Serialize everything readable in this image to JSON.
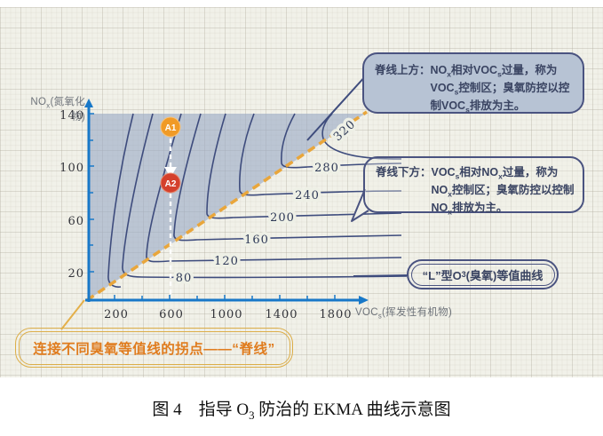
{
  "slide": {
    "chart": {
      "y_axis_label": "NOx(氮氧化物)",
      "x_axis_label": "VOCs(挥发性有机物)",
      "y_ticks": [
        "140",
        "100",
        "60",
        "20"
      ],
      "x_ticks": [
        "200",
        "600",
        "1000",
        "1400",
        "1800"
      ],
      "contour_labels": [
        "80",
        "120",
        "160",
        "200",
        "240",
        "280",
        "320"
      ],
      "points": [
        {
          "label": "A1",
          "color": "#f09a26"
        },
        {
          "label": "A2",
          "color": "#d4402c"
        }
      ]
    },
    "callouts": {
      "above_ridge": "脊线上方：NOx相对VOCs过量，称为VOCs控制区；臭氧防控以控制VOCs排放为主。",
      "below_ridge": "脊线下方：VOCs相对NOx过量，称为NOx控制区；臭氧防控以控制NOx排放为主。",
      "isopleth": "“L”型O3(臭氧)等值曲线",
      "ridge": "连接不同臭氧等值线的拐点——“脊线”"
    }
  },
  "caption": "图 4　指导 O3 防治的 EKMA 曲线示意图",
  "chart_data": {
    "type": "line",
    "subtype": "contour-schematic (EKMA isopleths)",
    "title": "",
    "xlabel": "VOCs(挥发性有机物)",
    "ylabel": "NOx(氮氧化物)",
    "xlim": [
      0,
      2000
    ],
    "ylim": [
      0,
      150
    ],
    "xticks": [
      200,
      600,
      1000,
      1400,
      1800
    ],
    "yticks": [
      20,
      60,
      100,
      140
    ],
    "grid": true,
    "contour_levels_o3": [
      40,
      80,
      120,
      160,
      200,
      240,
      280,
      320
    ],
    "labeled_levels": [
      80,
      120,
      160,
      200,
      240,
      280,
      320
    ],
    "ridge_line": {
      "style": "orange dashed",
      "from_xy": [
        0,
        0
      ],
      "to_xy": [
        2000,
        140
      ],
      "meaning": "连接不同臭氧等值线的拐点——“脊线”"
    },
    "annotations": [
      {
        "name": "A1",
        "x": 600,
        "y": 140,
        "color": "#f09a26"
      },
      {
        "name": "A2",
        "x": 600,
        "y": 100,
        "color": "#d4402c"
      }
    ],
    "shaded_region": "above ridge line (VOCs控制区), blue-gray fill",
    "colors": {
      "axis": "#1878c8",
      "contour": "#3e4c7d",
      "ridge": "#e9a63b",
      "shade": "#9aaac5",
      "callout_border": "#4a5380",
      "callout_fill": "#b7c3d4",
      "orange_text": "#e07c1e",
      "orange_border": "#dcae49"
    }
  }
}
